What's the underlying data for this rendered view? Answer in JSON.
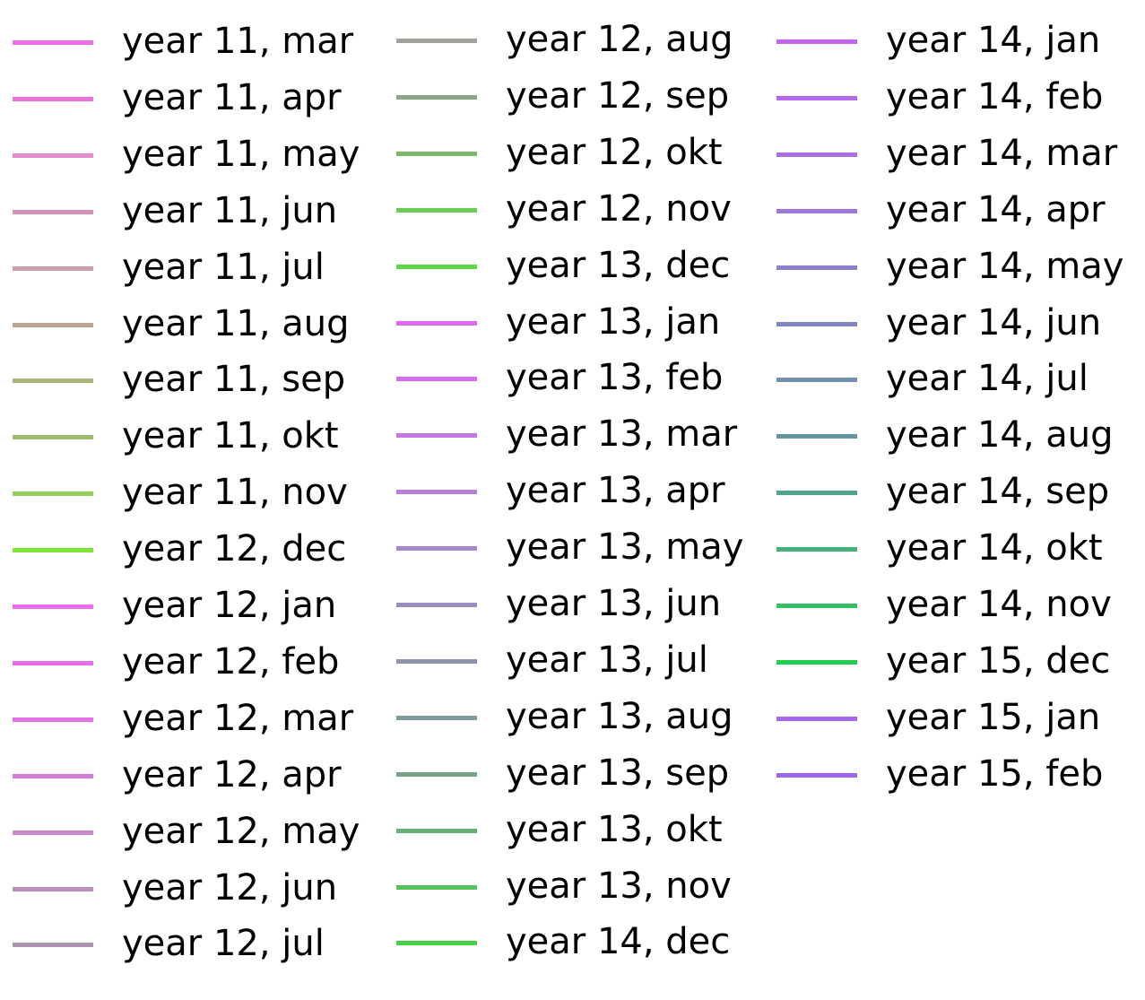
{
  "chart_data": {
    "type": "line",
    "legend_only": true,
    "legend_columns": 3,
    "series": [
      {
        "name": "year 11, mar",
        "color": "#ef6ce4"
      },
      {
        "name": "year 11, apr",
        "color": "#ec71d9"
      },
      {
        "name": "year 11, may",
        "color": "#e48bcb"
      },
      {
        "name": "year 11, jun",
        "color": "#d591b8"
      },
      {
        "name": "year 11, jul",
        "color": "#cc9ca8"
      },
      {
        "name": "year 11, aug",
        "color": "#bba48f"
      },
      {
        "name": "year 11, sep",
        "color": "#b0b27f"
      },
      {
        "name": "year 11, okt",
        "color": "#9cbc70"
      },
      {
        "name": "year 11, nov",
        "color": "#92d05a"
      },
      {
        "name": "year 12, dec",
        "color": "#80e337"
      },
      {
        "name": "year 12, jan",
        "color": "#ee6bee"
      },
      {
        "name": "year 12, feb",
        "color": "#e86ced"
      },
      {
        "name": "year 12, mar",
        "color": "#e272e6"
      },
      {
        "name": "year 12, apr",
        "color": "#d77bda"
      },
      {
        "name": "year 12, may",
        "color": "#cc88cc"
      },
      {
        "name": "year 12, jun",
        "color": "#bb8cbc"
      },
      {
        "name": "year 12, jul",
        "color": "#ad94b0"
      },
      {
        "name": "year 12, aug",
        "color": "#9ea39b"
      },
      {
        "name": "year 12, sep",
        "color": "#8aa786"
      },
      {
        "name": "year 12, okt",
        "color": "#7bb86c"
      },
      {
        "name": "year 12, nov",
        "color": "#6cc95a"
      },
      {
        "name": "year 13, dec",
        "color": "#5bd742"
      },
      {
        "name": "year 13, jan",
        "color": "#dc6af0"
      },
      {
        "name": "year 13, feb",
        "color": "#d46eec"
      },
      {
        "name": "year 13, mar",
        "color": "#c476e6"
      },
      {
        "name": "year 13, apr",
        "color": "#b57fdc"
      },
      {
        "name": "year 13, may",
        "color": "#a888cc"
      },
      {
        "name": "year 13, jun",
        "color": "#9b8cc0"
      },
      {
        "name": "year 13, jul",
        "color": "#8d94b0"
      },
      {
        "name": "year 13, aug",
        "color": "#819b9c"
      },
      {
        "name": "year 13, sep",
        "color": "#74a388"
      },
      {
        "name": "year 13, okt",
        "color": "#67b274"
      },
      {
        "name": "year 13, nov",
        "color": "#55c25c"
      },
      {
        "name": "year 14, dec",
        "color": "#45d048"
      },
      {
        "name": "year 14, jan",
        "color": "#c265f0"
      },
      {
        "name": "year 14, feb",
        "color": "#b468ec"
      },
      {
        "name": "year 14, mar",
        "color": "#ab70e6"
      },
      {
        "name": "year 14, apr",
        "color": "#9c76d8"
      },
      {
        "name": "year 14, may",
        "color": "#8d7fcc"
      },
      {
        "name": "year 14, jun",
        "color": "#7e86c0"
      },
      {
        "name": "year 14, jul",
        "color": "#7390b2"
      },
      {
        "name": "year 14, aug",
        "color": "#6496a2"
      },
      {
        "name": "year 14, sep",
        "color": "#53a58a"
      },
      {
        "name": "year 14, okt",
        "color": "#44b07a"
      },
      {
        "name": "year 14, nov",
        "color": "#35bf63"
      },
      {
        "name": "year 15, dec",
        "color": "#22cc4f"
      },
      {
        "name": "year 15, jan",
        "color": "#a766ef"
      },
      {
        "name": "year 15, feb",
        "color": "#9e65f0"
      }
    ]
  }
}
